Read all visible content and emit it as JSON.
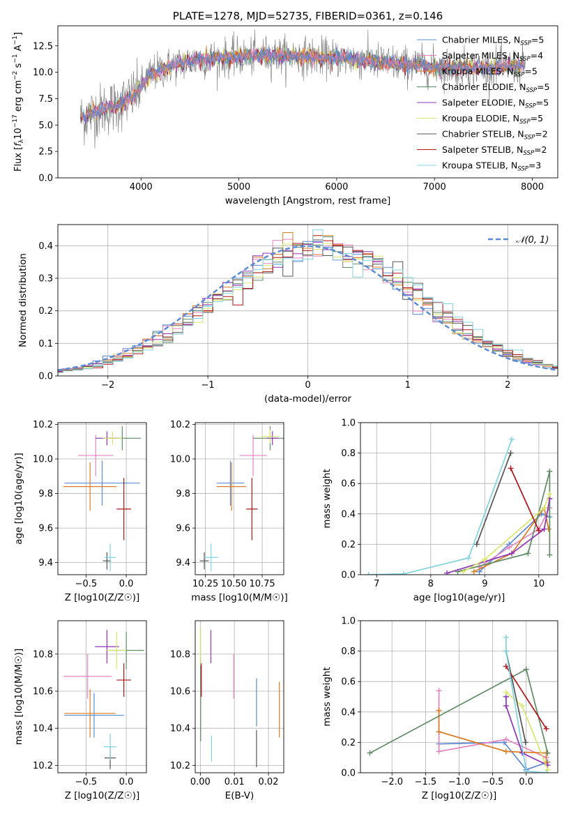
{
  "colors": {
    "Chabrier MILES": "#5b8bd5",
    "Salpeter MILES": "#e583c2",
    "Kroupa MILES": "#dd7b22",
    "Chabrier ELODIE": "#5e8c63",
    "Salpeter ELODIE": "#8e34b7",
    "Kroupa ELODIE": "#d8e76b",
    "Chabrier STELIB": "#545454",
    "Salpeter STELIB": "#b21417",
    "Kroupa STELIB": "#7fd3df",
    "normal": "#5b8bd5"
  },
  "chart_data": [
    {
      "id": "spectrum",
      "type": "line",
      "title": "PLATE=1278, MJD=52735, FIBERID=0361, z=0.146",
      "xlabel": "wavelength [Angstrom, rest frame]",
      "ylabel": "Flux [f_λ10^-17 erg cm^-2 s^-1 A^-1]",
      "xlim": [
        3150,
        8260
      ],
      "ylim": [
        0,
        14.4
      ],
      "xticks": [
        "4000",
        "5000",
        "6000",
        "7000",
        "8000"
      ],
      "yticks": [
        "0.0",
        "2.5",
        "5.0",
        "7.5",
        "10.0",
        "12.5"
      ],
      "legend_position": "right",
      "series": [
        {
          "name": "Chabrier MILES, N_SSP=5",
          "key": "Chabrier MILES"
        },
        {
          "name": "Salpeter MILES, N_SSP=4",
          "key": "Salpeter MILES"
        },
        {
          "name": "Kroupa MILES, N_SSP=5",
          "key": "Kroupa MILES"
        },
        {
          "name": "Chabrier ELODIE, N_SSP=5",
          "key": "Chabrier ELODIE"
        },
        {
          "name": "Salpeter ELODIE, N_SSP=5",
          "key": "Salpeter ELODIE"
        },
        {
          "name": "Kroupa ELODIE, N_SSP=5",
          "key": "Kroupa ELODIE"
        },
        {
          "name": "Chabrier STELIB, N_SSP=2",
          "key": "Chabrier STELIB"
        },
        {
          "name": "Salpeter STELIB, N_SSP=2",
          "key": "Salpeter STELIB"
        },
        {
          "name": "Kroupa STELIB, N_SSP=3",
          "key": "Kroupa STELIB"
        }
      ],
      "continuum": {
        "x": [
          3380,
          3500,
          3650,
          3800,
          3950,
          4100,
          4300,
          4500,
          4700,
          4900,
          5100,
          5300,
          5500,
          5700,
          5900,
          6100,
          6300,
          6500,
          6700,
          6900,
          7100,
          7300,
          7500,
          7700,
          7900
        ],
        "y": [
          5.6,
          6.1,
          6.6,
          7.0,
          8.0,
          9.8,
          10.6,
          11.0,
          11.3,
          11.4,
          11.5,
          11.6,
          11.6,
          11.5,
          11.4,
          11.3,
          11.1,
          10.9,
          10.7,
          10.6,
          10.5,
          10.45,
          10.4,
          10.5,
          10.6
        ]
      }
    },
    {
      "id": "residuals",
      "type": "histogram",
      "xlabel": "(data-model)/error",
      "ylabel": "Normed distribution",
      "xlim": [
        -2.5,
        2.5
      ],
      "ylim": [
        0,
        0.465
      ],
      "xticks": [
        "−2",
        "−1",
        "0",
        "1",
        "2"
      ],
      "yticks": [
        "0.0",
        "0.1",
        "0.2",
        "0.3",
        "0.4"
      ],
      "bin_width": 0.1,
      "legend": "𝒩(0, 1)",
      "normal": {
        "mu": 0,
        "sigma": 1
      }
    },
    {
      "id": "age_vs_Z",
      "type": "errorbar",
      "xlabel": "Z [log10(Z/Z☉)]",
      "ylabel": "age [log10(age/yr)]",
      "xlim": [
        -0.85,
        0.25
      ],
      "ylim": [
        9.33,
        10.21
      ],
      "xticks": [
        "−0.5",
        "0.0"
      ],
      "yticks": [
        "9.4",
        "9.6",
        "9.8",
        "10.0",
        "10.2"
      ],
      "points": [
        {
          "key": "Chabrier MILES",
          "x": -0.3,
          "y": 9.86,
          "xerr": 0.47,
          "yerr": 0.13
        },
        {
          "key": "Salpeter MILES",
          "x": -0.38,
          "y": 10.02,
          "xerr": 0.22,
          "yerr": 0.12
        },
        {
          "key": "Kroupa MILES",
          "x": -0.45,
          "y": 9.84,
          "xerr": 0.33,
          "yerr": 0.14
        },
        {
          "key": "Chabrier ELODIE",
          "x": -0.05,
          "y": 10.12,
          "xerr": 0.23,
          "yerr": 0.07
        },
        {
          "key": "Salpeter ELODIE",
          "x": -0.24,
          "y": 10.12,
          "xerr": 0.14,
          "yerr": 0.04
        },
        {
          "key": "Kroupa ELODIE",
          "x": -0.17,
          "y": 10.12,
          "xerr": 0.12,
          "yerr": 0.04
        },
        {
          "key": "Chabrier STELIB",
          "x": -0.24,
          "y": 9.41,
          "xerr": 0.05,
          "yerr": 0.05
        },
        {
          "key": "Salpeter STELIB",
          "x": -0.03,
          "y": 9.71,
          "xerr": 0.09,
          "yerr": 0.18
        },
        {
          "key": "Kroupa STELIB",
          "x": -0.2,
          "y": 9.43,
          "xerr": 0.07,
          "yerr": 0.08
        }
      ]
    },
    {
      "id": "age_vs_mass",
      "type": "errorbar",
      "xlabel": "mass [log10(M/M☉)]",
      "ylabel": "",
      "xlim": [
        10.16,
        10.94
      ],
      "ylim": [
        9.33,
        10.21
      ],
      "xticks": [
        "10.25",
        "10.50",
        "10.75"
      ],
      "yticks": [
        "9.4",
        "9.6",
        "9.8",
        "10.0",
        "10.2"
      ],
      "points": [
        {
          "key": "Chabrier MILES",
          "x": 10.47,
          "y": 9.86,
          "xerr": 0.12,
          "yerr": 0.13
        },
        {
          "key": "Salpeter MILES",
          "x": 10.67,
          "y": 10.02,
          "xerr": 0.12,
          "yerr": 0.12
        },
        {
          "key": "Kroupa MILES",
          "x": 10.48,
          "y": 9.84,
          "xerr": 0.13,
          "yerr": 0.14
        },
        {
          "key": "Chabrier ELODIE",
          "x": 10.82,
          "y": 10.12,
          "xerr": 0.15,
          "yerr": 0.07
        },
        {
          "key": "Salpeter ELODIE",
          "x": 10.84,
          "y": 10.12,
          "xerr": 0.05,
          "yerr": 0.04
        },
        {
          "key": "Kroupa ELODIE",
          "x": 10.82,
          "y": 10.13,
          "xerr": 0.08,
          "yerr": 0.04
        },
        {
          "key": "Chabrier STELIB",
          "x": 10.24,
          "y": 9.41,
          "xerr": 0.04,
          "yerr": 0.05
        },
        {
          "key": "Salpeter STELIB",
          "x": 10.66,
          "y": 9.71,
          "xerr": 0.05,
          "yerr": 0.18
        },
        {
          "key": "Kroupa STELIB",
          "x": 10.3,
          "y": 9.43,
          "xerr": 0.06,
          "yerr": 0.08
        }
      ]
    },
    {
      "id": "weight_vs_age",
      "type": "line",
      "xlabel": "age [log10(age/yr)]",
      "ylabel": "mass weight",
      "xlim": [
        6.7,
        10.35
      ],
      "ylim": [
        0,
        1.0
      ],
      "xticks": [
        "7",
        "8",
        "9",
        "10"
      ],
      "yticks": [
        "0.0",
        "0.2",
        "0.4",
        "0.6",
        "0.8",
        "1.0"
      ],
      "series": [
        {
          "key": "Chabrier MILES",
          "x": [
            8.9,
            9.45,
            10.05,
            10.2
          ],
          "y": [
            0.02,
            0.2,
            0.4,
            0.38
          ]
        },
        {
          "key": "Salpeter MILES",
          "x": [
            8.9,
            9.45,
            10.0,
            10.2
          ],
          "y": [
            0.05,
            0.18,
            0.3,
            0.44
          ]
        },
        {
          "key": "Kroupa MILES",
          "x": [
            8.8,
            9.5,
            10.1,
            10.18
          ],
          "y": [
            0.02,
            0.14,
            0.44,
            0.3
          ]
        },
        {
          "key": "Chabrier ELODIE",
          "x": [
            8.5,
            9.8,
            10.2,
            10.2
          ],
          "y": [
            0.02,
            0.14,
            0.68,
            0.13
          ]
        },
        {
          "key": "Salpeter ELODIE",
          "x": [
            8.3,
            9.5,
            10.1,
            10.2
          ],
          "y": [
            0.01,
            0.14,
            0.3,
            0.5
          ]
        },
        {
          "key": "Kroupa ELODIE",
          "x": [
            8.6,
            9.0,
            10.1,
            10.2
          ],
          "y": [
            0.02,
            0.1,
            0.44,
            0.53
          ]
        },
        {
          "key": "Chabrier STELIB",
          "x": [
            8.85,
            9.48
          ],
          "y": [
            0.2,
            0.8
          ]
        },
        {
          "key": "Salpeter STELIB",
          "x": [
            9.48,
            10.0
          ],
          "y": [
            0.7,
            0.29
          ]
        },
        {
          "key": "Kroupa STELIB",
          "x": [
            6.85,
            7.5,
            8.7,
            9.5
          ],
          "y": [
            0.0,
            0.005,
            0.11,
            0.89
          ]
        }
      ]
    },
    {
      "id": "mass_vs_Z",
      "type": "errorbar",
      "xlabel": "Z [log10(Z/Z☉)]",
      "ylabel": "mass [log10(M/M☉)]",
      "xlim": [
        -0.85,
        0.25
      ],
      "ylim": [
        10.16,
        10.98
      ],
      "xticks": [
        "−0.5",
        "0.0"
      ],
      "yticks": [
        "10.2",
        "10.4",
        "10.6",
        "10.8"
      ],
      "points": [
        {
          "key": "Chabrier MILES",
          "x": -0.4,
          "y": 10.47,
          "xerr": 0.37,
          "yerr": 0.12
        },
        {
          "key": "Salpeter MILES",
          "x": -0.48,
          "y": 10.68,
          "xerr": 0.3,
          "yerr": 0.12
        },
        {
          "key": "Kroupa MILES",
          "x": -0.45,
          "y": 10.48,
          "xerr": 0.32,
          "yerr": 0.13
        },
        {
          "key": "Chabrier ELODIE",
          "x": 0.0,
          "y": 10.82,
          "xerr": 0.22,
          "yerr": 0.1
        },
        {
          "key": "Salpeter ELODIE",
          "x": -0.24,
          "y": 10.84,
          "xerr": 0.15,
          "yerr": 0.09
        },
        {
          "key": "Kroupa ELODIE",
          "x": -0.12,
          "y": 10.82,
          "xerr": 0.12,
          "yerr": 0.1
        },
        {
          "key": "Chabrier STELIB",
          "x": -0.2,
          "y": 10.24,
          "xerr": 0.07,
          "yerr": 0.06
        },
        {
          "key": "Salpeter STELIB",
          "x": -0.03,
          "y": 10.66,
          "xerr": 0.09,
          "yerr": 0.09
        },
        {
          "key": "Kroupa STELIB",
          "x": -0.2,
          "y": 10.3,
          "xerr": 0.08,
          "yerr": 0.07
        }
      ]
    },
    {
      "id": "mass_vs_ebv",
      "type": "errorbar",
      "xlabel": "E(B-V)",
      "ylabel": "",
      "xlim": [
        -0.0015,
        0.0245
      ],
      "ylim": [
        10.16,
        10.98
      ],
      "xticks": [
        "0.00",
        "0.01",
        "0.02"
      ],
      "yticks": [
        "10.2",
        "10.4",
        "10.6",
        "10.8"
      ],
      "points": [
        {
          "key": "Chabrier MILES",
          "x": 0.0165,
          "y": 10.54,
          "xerr": 0,
          "yerr": 0.13
        },
        {
          "key": "Salpeter MILES",
          "x": 0.0098,
          "y": 10.68,
          "xerr": 0,
          "yerr": 0.12
        },
        {
          "key": "Kroupa MILES",
          "x": 0.0232,
          "y": 10.5,
          "xerr": 0,
          "yerr": 0.15
        },
        {
          "key": "Chabrier ELODIE",
          "x": 0.0001,
          "y": 10.55,
          "xerr": 0,
          "yerr": 0.22
        },
        {
          "key": "Salpeter ELODIE",
          "x": 0.0031,
          "y": 10.84,
          "xerr": 0,
          "yerr": 0.09
        },
        {
          "key": "Kroupa ELODIE",
          "x": 0.0001,
          "y": 10.84,
          "xerr": 0,
          "yerr": 0.1
        },
        {
          "key": "Chabrier STELIB",
          "x": 0.0165,
          "y": 10.29,
          "xerr": 0,
          "yerr": 0.1
        },
        {
          "key": "Salpeter STELIB",
          "x": 0.0003,
          "y": 10.66,
          "xerr": 0,
          "yerr": 0.09
        },
        {
          "key": "Kroupa STELIB",
          "x": 0.0033,
          "y": 10.29,
          "xerr": 0,
          "yerr": 0.07
        }
      ]
    },
    {
      "id": "weight_vs_Z",
      "type": "line",
      "xlabel": "Z [log10(Z/Z☉)]",
      "ylabel": "mass weight",
      "xlim": [
        -2.47,
        0.47
      ],
      "ylim": [
        0,
        1.0
      ],
      "xticks": [
        "−2.0",
        "−1.5",
        "−1.0",
        "−0.5",
        "0.0"
      ],
      "yticks": [
        "0.0",
        "0.2",
        "0.4",
        "0.6",
        "0.8",
        "1.0"
      ],
      "series": [
        {
          "key": "Chabrier MILES",
          "x": [
            -1.3,
            -0.33,
            0.0,
            0.32
          ],
          "y": [
            0.19,
            0.2,
            0.02,
            0.07
          ]
        },
        {
          "key": "Salpeter MILES",
          "x": [
            -1.3,
            -1.3,
            -0.3,
            0.3
          ],
          "y": [
            0.54,
            0.14,
            0.22,
            0.1
          ]
        },
        {
          "key": "Kroupa MILES",
          "x": [
            -1.3,
            -1.3,
            -0.3,
            0.3,
            0.3
          ],
          "y": [
            0.41,
            0.27,
            0.14,
            0.13,
            0.07
          ]
        },
        {
          "key": "Chabrier ELODIE",
          "x": [
            -2.33,
            0.0,
            0.32
          ],
          "y": [
            0.13,
            0.68,
            0.13
          ]
        },
        {
          "key": "Salpeter ELODIE",
          "x": [
            -0.3,
            -0.3,
            -0.06,
            0.32
          ],
          "y": [
            0.5,
            0.44,
            0.13,
            0.05
          ]
        },
        {
          "key": "Kroupa ELODIE",
          "x": [
            -0.3,
            -0.06,
            0.32
          ],
          "y": [
            0.53,
            0.44,
            0.02
          ]
        },
        {
          "key": "Chabrier STELIB",
          "x": [
            -0.3,
            -0.01
          ],
          "y": [
            0.8,
            0.2
          ]
        },
        {
          "key": "Salpeter STELIB",
          "x": [
            -0.3,
            0.3
          ],
          "y": [
            0.7,
            0.29
          ]
        },
        {
          "key": "Kroupa STELIB",
          "x": [
            -0.3,
            -0.3,
            0.0,
            0.3
          ],
          "y": [
            0.89,
            0.8,
            0.01,
            0.0
          ]
        }
      ]
    }
  ]
}
